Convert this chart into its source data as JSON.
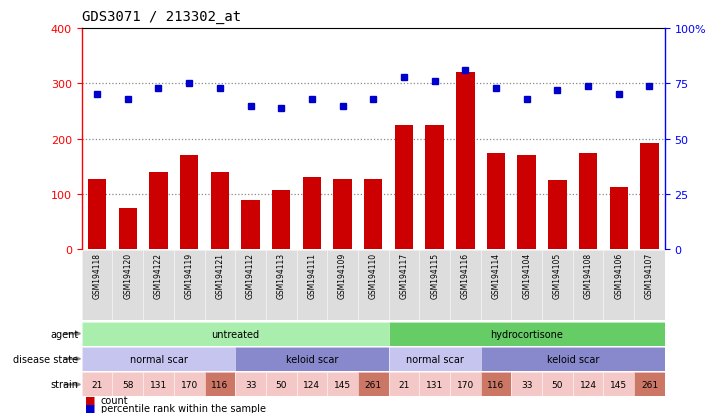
{
  "title": "GDS3071 / 213302_at",
  "samples": [
    "GSM194118",
    "GSM194120",
    "GSM194122",
    "GSM194119",
    "GSM194121",
    "GSM194112",
    "GSM194113",
    "GSM194111",
    "GSM194109",
    "GSM194110",
    "GSM194117",
    "GSM194115",
    "GSM194116",
    "GSM194114",
    "GSM194104",
    "GSM194105",
    "GSM194108",
    "GSM194106",
    "GSM194107"
  ],
  "counts": [
    127,
    75,
    140,
    170,
    140,
    90,
    107,
    130,
    128,
    128,
    225,
    225,
    320,
    175,
    170,
    125,
    175,
    112,
    192
  ],
  "percentiles_pct": [
    70,
    68,
    73,
    75,
    73,
    65,
    64,
    68,
    65,
    68,
    78,
    76,
    81,
    73,
    68,
    72,
    74,
    70,
    74
  ],
  "bar_color": "#cc0000",
  "dot_color": "#0000cc",
  "ylim_left": [
    0,
    400
  ],
  "ylim_right": [
    0,
    100
  ],
  "yticks_left": [
    0,
    100,
    200,
    300,
    400
  ],
  "yticks_right": [
    0,
    25,
    50,
    75,
    100
  ],
  "yticklabels_right": [
    "0",
    "25",
    "50",
    "75",
    "100%"
  ],
  "agent_groups": [
    {
      "label": "untreated",
      "start": 0,
      "end": 10,
      "color": "#aaeead"
    },
    {
      "label": "hydrocortisone",
      "start": 10,
      "end": 19,
      "color": "#66cc66"
    }
  ],
  "disease_groups": [
    {
      "label": "normal scar",
      "start": 0,
      "end": 5,
      "color": "#c5c5f0"
    },
    {
      "label": "keloid scar",
      "start": 5,
      "end": 10,
      "color": "#8888cc"
    },
    {
      "label": "normal scar",
      "start": 10,
      "end": 13,
      "color": "#c5c5f0"
    },
    {
      "label": "keloid scar",
      "start": 13,
      "end": 19,
      "color": "#8888cc"
    }
  ],
  "strain_values": [
    "21",
    "58",
    "131",
    "170",
    "116",
    "33",
    "50",
    "124",
    "145",
    "261",
    "21",
    "131",
    "170",
    "116",
    "33",
    "50",
    "124",
    "145",
    "261"
  ],
  "strain_highlighted": [
    4,
    9,
    13,
    18
  ],
  "strain_color_normal": "#f5c8c8",
  "strain_color_highlight": "#cc7766",
  "background_color": "#ffffff",
  "grid_color": "#888888",
  "label_bg_color": "#dddddd",
  "legend_count_color": "#cc0000",
  "legend_pct_color": "#0000cc"
}
